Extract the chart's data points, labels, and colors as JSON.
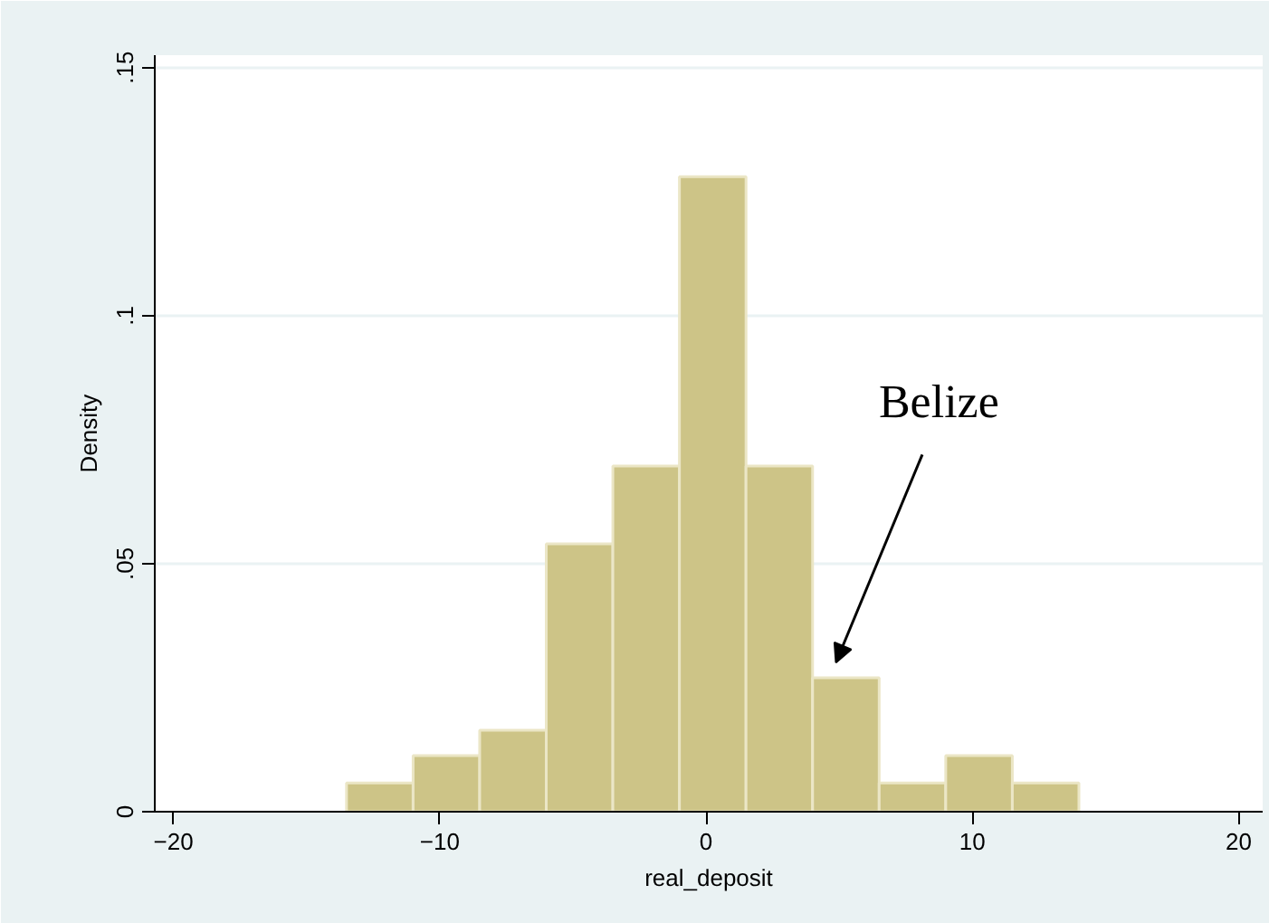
{
  "chart_data": {
    "type": "histogram",
    "xlabel": "real_deposit",
    "ylabel": "Density",
    "bins": [
      -13.5,
      -11,
      -8.5,
      -6,
      -3.5,
      -1,
      1.5,
      4,
      6.5,
      9,
      11.5,
      14
    ],
    "values": [
      0.0058,
      0.0113,
      0.0164,
      0.054,
      0.0697,
      0.128,
      0.0697,
      0.027,
      0.0058,
      0.0113,
      0.0058
    ],
    "color": "#cdc487",
    "xlim": [
      -20.7,
      20.9
    ],
    "xticks": [
      -20,
      -10,
      0,
      10,
      20
    ],
    "ylim": [
      0,
      0.1525
    ],
    "yticks": [
      0,
      {
        "value": 0.05,
        "label": ".05"
      },
      {
        "value": 0.1,
        "label": ".1"
      },
      {
        "value": 0.15,
        "label": ".15"
      }
    ],
    "grid": "y",
    "annotations": [
      {
        "text": "Belize",
        "x": 5,
        "y": 0.027
      }
    ]
  }
}
